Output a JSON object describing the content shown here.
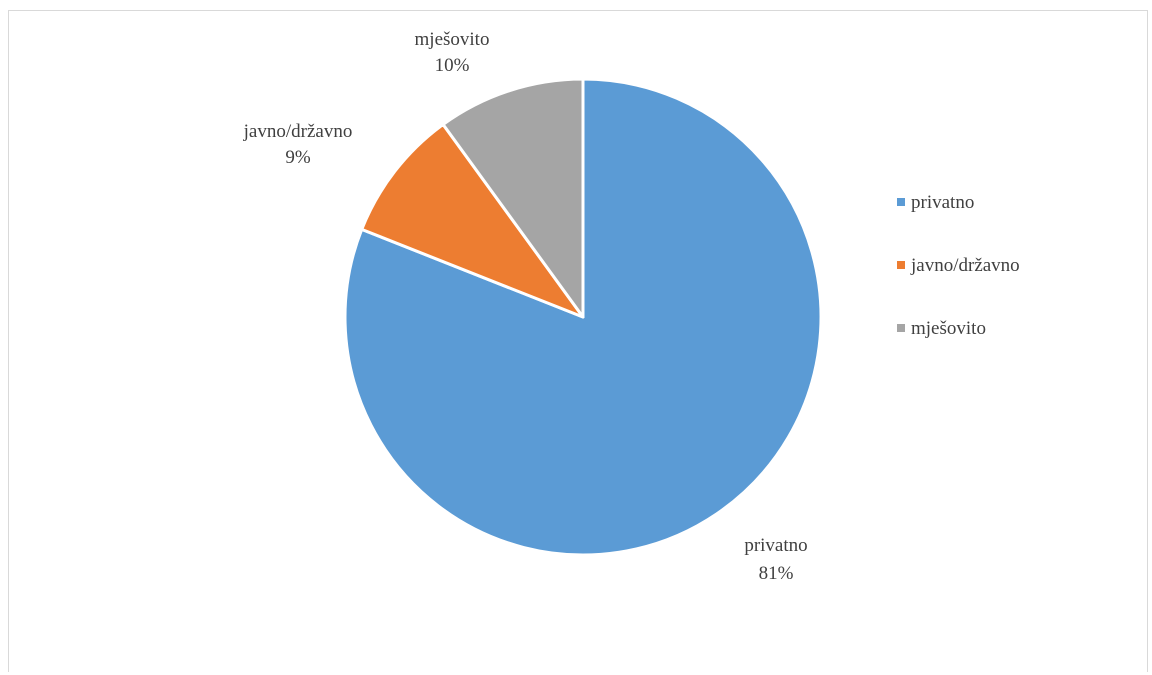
{
  "chart_data": {
    "type": "pie",
    "title": "",
    "legend_position": "right",
    "slices": [
      {
        "label": "privatno",
        "value": 81,
        "percent_label": "81%",
        "color": "#5b9bd5"
      },
      {
        "label": "javno/državno",
        "value": 9,
        "percent_label": "9%",
        "color": "#ed7d31"
      },
      {
        "label": "mješovito",
        "value": 10,
        "percent_label": "10%",
        "color": "#a5a5a5"
      }
    ]
  }
}
